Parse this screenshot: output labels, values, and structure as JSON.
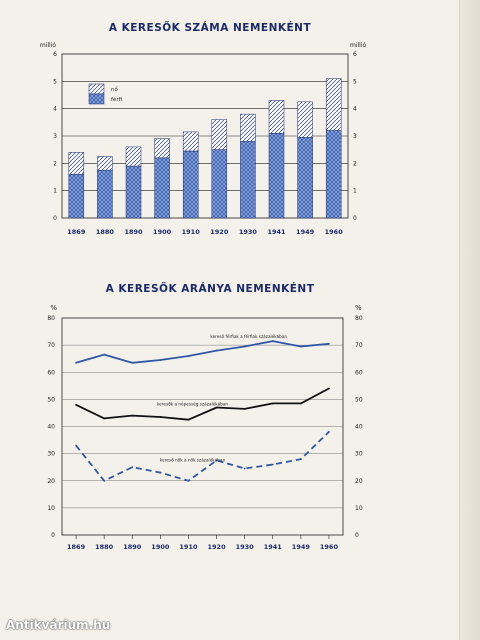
{
  "watermark": "Antikvárium.hu",
  "chart_data": [
    {
      "type": "bar",
      "title": "A KERESŐK SZÁMA NEMENKÉNT",
      "ylabel_left": "millió",
      "ylabel_right": "millió",
      "ylim": [
        0,
        6
      ],
      "yticks": [
        0,
        1,
        2,
        3,
        4,
        5,
        6
      ],
      "categories": [
        "1869",
        "1880",
        "1890",
        "1900",
        "1910",
        "1920",
        "1930",
        "1941",
        "1949",
        "1960"
      ],
      "stacked": true,
      "series": [
        {
          "name": "férfi",
          "values": [
            1.6,
            1.75,
            1.9,
            2.2,
            2.45,
            2.5,
            2.8,
            3.1,
            2.95,
            3.2
          ],
          "color": "#3d64b4"
        },
        {
          "name": "nő",
          "values": [
            0.8,
            0.5,
            0.7,
            0.7,
            0.7,
            1.1,
            1.0,
            1.2,
            1.3,
            1.9
          ],
          "color": "#ffffff"
        }
      ],
      "legend": "top-left"
    },
    {
      "type": "line",
      "title": "A KERESŐK ARÁNYA NEMENKÉNT",
      "ylabel_left": "%",
      "ylabel_right": "%",
      "ylim": [
        0,
        80
      ],
      "yticks": [
        0,
        10,
        20,
        30,
        40,
        50,
        60,
        70,
        80
      ],
      "x": [
        "1869",
        "1880",
        "1890",
        "1900",
        "1910",
        "1920",
        "1930",
        "1941",
        "1949",
        "1960"
      ],
      "series": [
        {
          "name": "kereső férfiak a férfiak százalékában",
          "values": [
            63.5,
            66.5,
            63.5,
            64.5,
            66,
            68,
            69.5,
            71.5,
            69.5,
            70.5
          ],
          "color": "#2f57a8",
          "style": "solid"
        },
        {
          "name": "keresők a népesség százalékában",
          "values": [
            48,
            43,
            44,
            43.5,
            42.5,
            47,
            46.5,
            48.5,
            48.5,
            54
          ],
          "color": "#111111",
          "style": "solid"
        },
        {
          "name": "kereső nők a nők százalékában",
          "values": [
            33,
            20,
            25,
            23,
            20,
            27.5,
            24.5,
            26,
            28,
            38
          ],
          "color": "#2f57a8",
          "style": "dashed"
        }
      ]
    }
  ]
}
